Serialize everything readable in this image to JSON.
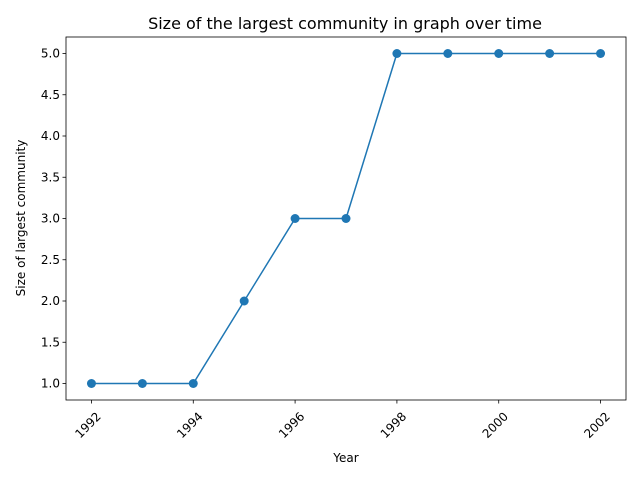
{
  "chart_data": {
    "type": "line",
    "title": "Size of the largest community in graph over time",
    "xlabel": "Year",
    "ylabel": "Size of largest community",
    "x": [
      1992,
      1993,
      1994,
      1995,
      1996,
      1997,
      1998,
      1999,
      2000,
      2001,
      2002
    ],
    "series": [
      {
        "values": [
          1,
          1,
          1,
          2,
          3,
          3,
          5,
          5,
          5,
          5,
          5
        ]
      }
    ],
    "xlim": [
      1991.5,
      2002.5
    ],
    "ylim": [
      0.8,
      5.2
    ],
    "xticks": [
      1992,
      1994,
      1996,
      1998,
      2000,
      2002
    ],
    "xtick_labels": [
      "1992",
      "1994",
      "1996",
      "1998",
      "2000",
      "2002"
    ],
    "yticks": [
      1.0,
      1.5,
      2.0,
      2.5,
      3.0,
      3.5,
      4.0,
      4.5,
      5.0
    ],
    "ytick_labels": [
      "1.0",
      "1.5",
      "2.0",
      "2.5",
      "3.0",
      "3.5",
      "4.0",
      "4.5",
      "5.0"
    ],
    "line_color": "#1f77b4",
    "marker": "circle",
    "grid": false,
    "legend": false
  }
}
